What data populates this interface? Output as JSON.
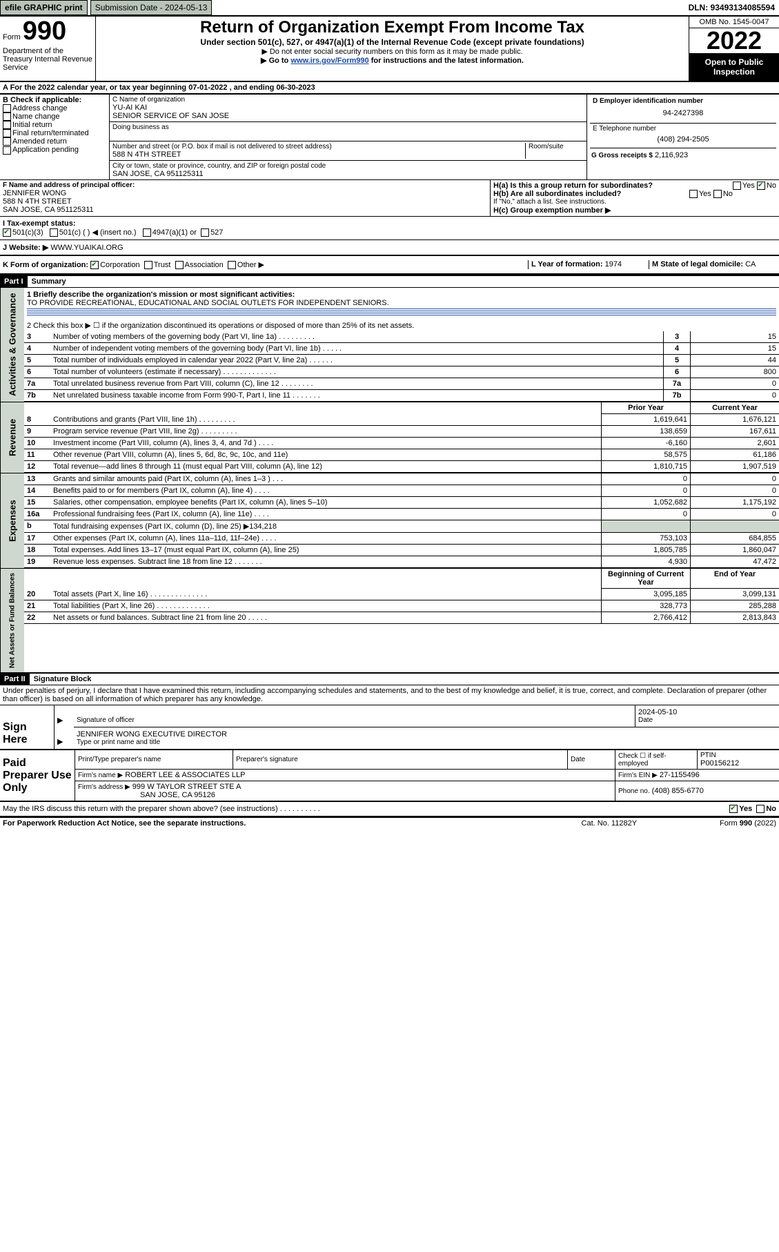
{
  "top": {
    "efile": "efile GRAPHIC print",
    "submission": "Submission Date - 2024-05-13",
    "dln": "DLN: 93493134085594"
  },
  "header": {
    "form_prefix": "Form",
    "form_num": "990",
    "title": "Return of Organization Exempt From Income Tax",
    "subtitle": "Under section 501(c), 527, or 4947(a)(1) of the Internal Revenue Code (except private foundations)",
    "note1": "▶ Do not enter social security numbers on this form as it may be made public.",
    "note2_pre": "▶ Go to ",
    "note2_link": "www.irs.gov/Form990",
    "note2_post": " for instructions and the latest information.",
    "omb": "OMB No. 1545-0047",
    "year": "2022",
    "open_pub": "Open to Public Inspection",
    "dept": "Department of the Treasury Internal Revenue Service"
  },
  "rowA": "A For the 2022 calendar year, or tax year beginning 07-01-2022    , and ending 06-30-2023",
  "boxB": {
    "title": "B Check if applicable:",
    "items": [
      "Address change",
      "Name change",
      "Initial return",
      "Final return/terminated",
      "Amended return",
      "Application pending"
    ]
  },
  "boxC": {
    "label": "C Name of organization",
    "line1": "YU-AI KAI",
    "line2": "SENIOR SERVICE OF SAN JOSE",
    "dba": "Doing business as",
    "addr_label": "Number and street (or P.O. box if mail is not delivered to street address)",
    "room": "Room/suite",
    "addr": "588 N 4TH STREET",
    "city_label": "City or town, state or province, country, and ZIP or foreign postal code",
    "city": "SAN JOSE, CA  951125311"
  },
  "boxD": {
    "label": "D Employer identification number",
    "val": "94-2427398"
  },
  "boxE": {
    "label": "E Telephone number",
    "val": "(408) 294-2505"
  },
  "boxG": {
    "label": "G Gross receipts $",
    "val": "2,116,923"
  },
  "boxF": {
    "label": "F Name and address of principal officer:",
    "name": "JENNIFER WONG",
    "addr1": "588 N 4TH STREET",
    "addr2": "SAN JOSE, CA  951125311"
  },
  "boxH": {
    "a": "H(a)  Is this a group return for subordinates?",
    "a_no": "No",
    "b": "H(b)  Are all subordinates included?",
    "b_note": "If \"No,\" attach a list. See instructions.",
    "c": "H(c)  Group exemption number ▶"
  },
  "rowI": {
    "label": "I  Tax-exempt status:",
    "opt1": "501(c)(3)",
    "opt2": "501(c) (  ) ◀ (insert no.)",
    "opt3": "4947(a)(1) or",
    "opt4": "527"
  },
  "rowJ": {
    "label": "J  Website: ▶",
    "val": "WWW.YUAIKAI.ORG"
  },
  "rowK": {
    "label": "K Form of organization:",
    "opts": [
      "Corporation",
      "Trust",
      "Association",
      "Other ▶"
    ]
  },
  "rowL": {
    "label": "L Year of formation:",
    "val": "1974"
  },
  "rowM": {
    "label": "M State of legal domicile:",
    "val": "CA"
  },
  "part1": {
    "bar": "Part I",
    "title": "Summary",
    "l1": "1  Briefly describe the organization's mission or most significant activities:",
    "l1_text": "TO PROVIDE RECREATIONAL, EDUCATIONAL AND SOCIAL OUTLETS FOR INDEPENDENT SENIORS.",
    "l2": "2  Check this box ▶ ☐  if the organization discontinued its operations or disposed of more than 25% of its net assets.",
    "rows_ag": [
      {
        "n": "3",
        "t": "Number of voting members of the governing body (Part VI, line 1a)  .    .    .    .    .    .    .    .    .",
        "v": "15"
      },
      {
        "n": "4",
        "t": "Number of independent voting members of the governing body (Part VI, line 1b)  .    .    .    .    .",
        "v": "15"
      },
      {
        "n": "5",
        "t": "Total number of individuals employed in calendar year 2022 (Part V, line 2a)  .    .    .    .    .    .",
        "v": "44"
      },
      {
        "n": "6",
        "t": "Total number of volunteers (estimate if necessary)  .    .    .    .    .    .    .    .    .    .    .    .    .",
        "v": "800"
      },
      {
        "n": "7a",
        "t": "Total unrelated business revenue from Part VIII, column (C), line 12  .    .    .    .    .    .    .    .",
        "v": "0"
      },
      {
        "n": "7b",
        "t": "Net unrelated business taxable income from Form 990-T, Part I, line 11  .    .    .    .    .    .    .",
        "v": "0"
      }
    ],
    "hdr_prior": "Prior Year",
    "hdr_curr": "Current Year",
    "rev": [
      {
        "n": "8",
        "t": "Contributions and grants (Part VIII, line 1h)  .    .    .    .    .    .    .    .    .",
        "p": "1,619,641",
        "c": "1,676,121"
      },
      {
        "n": "9",
        "t": "Program service revenue (Part VIII, line 2g)  .    .    .    .    .    .    .    .    .",
        "p": "138,659",
        "c": "167,611"
      },
      {
        "n": "10",
        "t": "Investment income (Part VIII, column (A), lines 3, 4, and 7d )  .    .    .    .",
        "p": "-6,160",
        "c": "2,601"
      },
      {
        "n": "11",
        "t": "Other revenue (Part VIII, column (A), lines 5, 6d, 8c, 9c, 10c, and 11e)",
        "p": "58,575",
        "c": "61,186"
      },
      {
        "n": "12",
        "t": "Total revenue—add lines 8 through 11 (must equal Part VIII, column (A), line 12)",
        "p": "1,810,715",
        "c": "1,907,519"
      }
    ],
    "exp": [
      {
        "n": "13",
        "t": "Grants and similar amounts paid (Part IX, column (A), lines 1–3 )  .    .    .",
        "p": "0",
        "c": "0"
      },
      {
        "n": "14",
        "t": "Benefits paid to or for members (Part IX, column (A), line 4)  .    .    .    .",
        "p": "0",
        "c": "0"
      },
      {
        "n": "15",
        "t": "Salaries, other compensation, employee benefits (Part IX, column (A), lines 5–10)",
        "p": "1,052,682",
        "c": "1,175,192"
      },
      {
        "n": "16a",
        "t": "Professional fundraising fees (Part IX, column (A), line 11e)  .    .    .    .",
        "p": "0",
        "c": "0"
      },
      {
        "n": "b",
        "t": "Total fundraising expenses (Part IX, column (D), line 25) ▶134,218",
        "p": "",
        "c": ""
      },
      {
        "n": "17",
        "t": "Other expenses (Part IX, column (A), lines 11a–11d, 11f–24e)  .    .    .    .",
        "p": "753,103",
        "c": "684,855"
      },
      {
        "n": "18",
        "t": "Total expenses. Add lines 13–17 (must equal Part IX, column (A), line 25)",
        "p": "1,805,785",
        "c": "1,860,047"
      },
      {
        "n": "19",
        "t": "Revenue less expenses. Subtract line 18 from line 12  .    .    .    .    .    .    .",
        "p": "4,930",
        "c": "47,472"
      }
    ],
    "hdr_begin": "Beginning of Current Year",
    "hdr_end": "End of Year",
    "na": [
      {
        "n": "20",
        "t": "Total assets (Part X, line 16)  .    .    .    .    .    .    .    .    .    .    .    .    .    .",
        "p": "3,095,185",
        "c": "3,099,131"
      },
      {
        "n": "21",
        "t": "Total liabilities (Part X, line 26)  .    .    .    .    .    .    .    .    .    .    .    .    .",
        "p": "328,773",
        "c": "285,288"
      },
      {
        "n": "22",
        "t": "Net assets or fund balances. Subtract line 21 from line 20  .    .    .    .    .",
        "p": "2,766,412",
        "c": "2,813,843"
      }
    ]
  },
  "vtabs": {
    "ag": "Activities & Governance",
    "rev": "Revenue",
    "exp": "Expenses",
    "na": "Net Assets or Fund Balances"
  },
  "part2": {
    "bar": "Part II",
    "title": "Signature Block",
    "decl": "Under penalties of perjury, I declare that I have examined this return, including accompanying schedules and statements, and to the best of my knowledge and belief, it is true, correct, and complete. Declaration of preparer (other than officer) is based on all information of which preparer has any knowledge."
  },
  "sign": {
    "here": "Sign Here",
    "sig_label": "Signature of officer",
    "date_label": "Date",
    "date": "2024-05-10",
    "name": "JENNIFER WONG  EXECUTIVE DIRECTOR",
    "name_label": "Type or print name and title"
  },
  "paid": {
    "title": "Paid Preparer Use Only",
    "h1": "Print/Type preparer's name",
    "h2": "Preparer's signature",
    "h3": "Date",
    "h4_pre": "Check ☐ if self-employed",
    "h5": "PTIN",
    "ptin": "P00156212",
    "firm_label": "Firm's name    ▶",
    "firm": "ROBERT LEE & ASSOCIATES LLP",
    "ein_label": "Firm's EIN ▶",
    "ein": "27-1155496",
    "addr_label": "Firm's address ▶",
    "addr1": "999 W TAYLOR STREET STE A",
    "addr2": "SAN JOSE, CA  95126",
    "phone_label": "Phone no.",
    "phone": "(408) 855-6770"
  },
  "footer": {
    "q": "May the IRS discuss this return with the preparer shown above? (see instructions)  .    .    .    .    .    .    .    .    .    .",
    "yes": "Yes",
    "no": "No",
    "pra": "For Paperwork Reduction Act Notice, see the separate instructions.",
    "cat": "Cat. No. 11282Y",
    "form": "Form 990 (2022)"
  }
}
